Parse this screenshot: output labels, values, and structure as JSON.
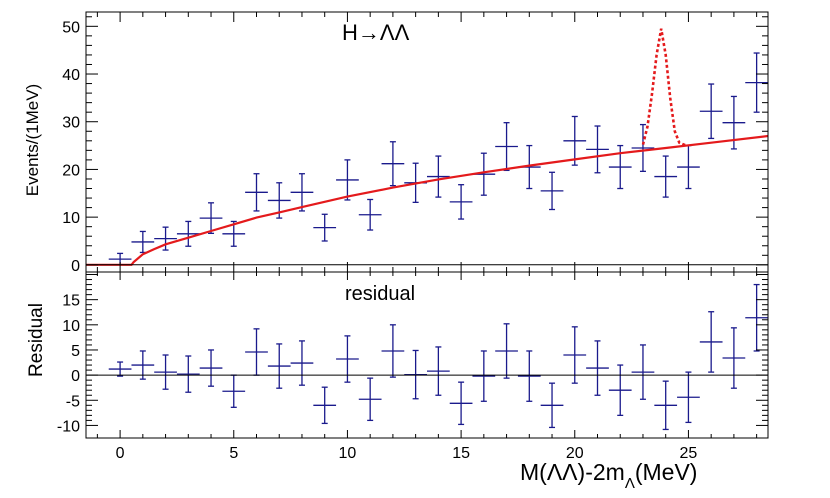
{
  "chart_data": [
    {
      "type": "scatter",
      "panel": "top",
      "title": "H→ΛΛ",
      "ylabel": "Events/(1MeV)",
      "xlabel": "",
      "xlim": [
        -1.5,
        28.5
      ],
      "ylim": [
        -1.5,
        53
      ],
      "yticks": [
        0,
        10,
        20,
        30,
        40,
        50
      ],
      "grid": false,
      "series": [
        {
          "name": "data",
          "style": "points-with-errorbars",
          "color": "#1a1a8c",
          "x": [
            0,
            1,
            2,
            3,
            4,
            5,
            6,
            7,
            8,
            9,
            10,
            11,
            12,
            13,
            14,
            15,
            16,
            17,
            18,
            19,
            20,
            21,
            22,
            23,
            24,
            25,
            26,
            27,
            28
          ],
          "y": [
            1.2,
            4.8,
            5.5,
            6.5,
            9.8,
            6.5,
            15.2,
            13.5,
            15.2,
            7.8,
            17.8,
            10.5,
            21.2,
            17.2,
            18.5,
            13.2,
            19.0,
            24.8,
            20.5,
            15.5,
            26.0,
            24.2,
            20.5,
            24.5,
            18.5,
            20.5,
            32.2,
            29.8,
            38.2
          ],
          "yerr": [
            1.2,
            2.2,
            2.4,
            2.6,
            3.2,
            2.6,
            3.9,
            3.7,
            3.9,
            2.8,
            4.2,
            3.2,
            4.6,
            4.1,
            4.3,
            3.6,
            4.4,
            5.0,
            4.5,
            3.9,
            5.1,
            4.9,
            4.5,
            4.9,
            4.3,
            4.5,
            5.7,
            5.5,
            6.2
          ],
          "xerr": 0.5
        },
        {
          "name": "background fit",
          "style": "solid-line",
          "color": "#e41a1c",
          "x": [
            -1.5,
            0.5,
            0.6,
            1,
            1.5,
            2,
            3,
            4,
            5,
            6,
            7,
            8,
            10,
            12,
            14,
            16,
            18,
            20,
            22,
            24,
            26,
            28.5
          ],
          "y": [
            0,
            0,
            0.6,
            2.2,
            3.3,
            4.3,
            5.7,
            7.1,
            8.5,
            9.9,
            11.0,
            12.1,
            14.3,
            16.2,
            17.9,
            19.4,
            20.8,
            22.1,
            23.4,
            24.5,
            25.6,
            27.0
          ]
        },
        {
          "name": "signal + background",
          "style": "dotted-line",
          "color": "#e41a1c",
          "x": [
            23.0,
            23.2,
            23.4,
            23.6,
            23.8,
            24.0,
            24.2,
            24.4,
            24.6,
            24.9
          ],
          "y": [
            25.2,
            29.0,
            36.0,
            44.0,
            49.5,
            44.0,
            35.0,
            28.0,
            25.6,
            25.0
          ]
        },
        {
          "name": "zero line",
          "style": "solid-line",
          "color": "#000000",
          "x": [
            -1.5,
            28.5
          ],
          "y": [
            0,
            0
          ]
        }
      ]
    },
    {
      "type": "scatter",
      "panel": "bottom",
      "title": "residual",
      "ylabel": "Residual",
      "xlabel": "M(ΛΛ)-2mΛ(MeV)",
      "xlabel_parts": {
        "main": "M(ΛΛ)-2m",
        "sub": "Λ",
        "unit": "(MeV)"
      },
      "xlim": [
        -1.5,
        28.5
      ],
      "ylim": [
        -12.5,
        20.5
      ],
      "xticks": [
        0,
        5,
        10,
        15,
        20,
        25
      ],
      "yticks": [
        -10,
        -5,
        0,
        5,
        10,
        15
      ],
      "grid": false,
      "series": [
        {
          "name": "residual",
          "style": "points-with-errorbars",
          "color": "#1a1a8c",
          "x": [
            0,
            1,
            2,
            3,
            4,
            5,
            6,
            7,
            8,
            9,
            10,
            11,
            12,
            13,
            14,
            15,
            16,
            17,
            18,
            19,
            20,
            21,
            22,
            23,
            24,
            25,
            26,
            27,
            28
          ],
          "y": [
            1.2,
            2.0,
            0.6,
            0.2,
            1.4,
            -3.2,
            4.6,
            1.8,
            2.4,
            -6.0,
            3.2,
            -4.8,
            4.8,
            0.1,
            0.8,
            -5.6,
            -0.2,
            4.8,
            -0.2,
            -6.0,
            4.0,
            1.4,
            -3.0,
            0.6,
            -6.0,
            -4.4,
            6.6,
            3.4,
            11.4
          ],
          "yerr": [
            1.4,
            2.8,
            3.4,
            3.6,
            3.6,
            3.2,
            4.6,
            4.4,
            4.4,
            3.6,
            4.6,
            4.2,
            5.2,
            4.8,
            4.8,
            4.2,
            5.0,
            5.4,
            5.0,
            4.4,
            5.6,
            5.4,
            5.0,
            5.4,
            4.8,
            5.0,
            6.0,
            6.0,
            6.6
          ],
          "xerr": 0.5
        },
        {
          "name": "zero line",
          "style": "solid-line",
          "color": "#000000",
          "x": [
            -1.5,
            28.5
          ],
          "y": [
            0,
            0
          ]
        }
      ]
    }
  ]
}
